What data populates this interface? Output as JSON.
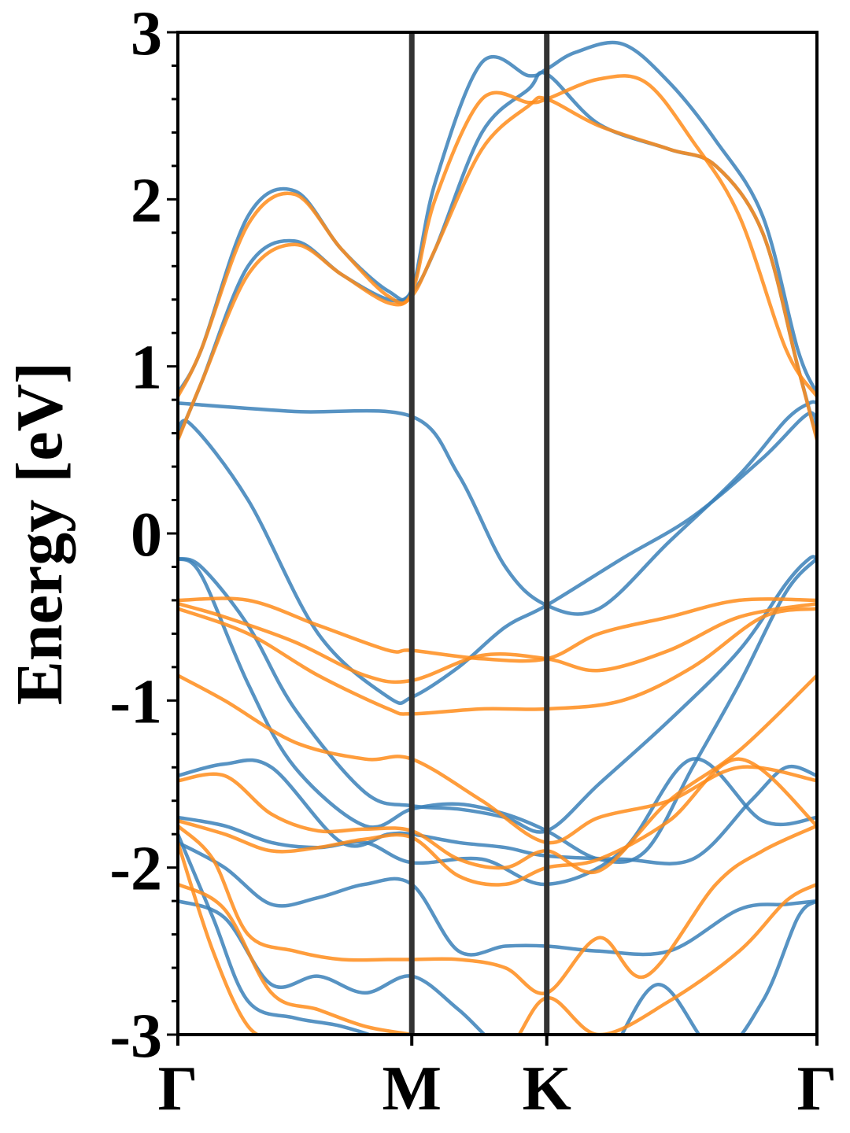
{
  "chart_data": {
    "type": "line",
    "title": "",
    "xlabel": "",
    "ylabel": "Energy [eV]",
    "ylim": [
      -3,
      3
    ],
    "yticks": [
      "-3",
      "-2",
      "-1",
      "0",
      "1",
      "2",
      "3"
    ],
    "y_minor_step": 0.2,
    "kpoints": [
      {
        "label": "Γ",
        "pos": 0.0
      },
      {
        "label": "M",
        "pos": 1.0
      },
      {
        "label": "K",
        "pos": 1.577
      },
      {
        "label": "Γ",
        "pos": 2.732
      }
    ],
    "xlim": [
      0,
      2.732
    ],
    "grid": false,
    "legend": "none",
    "colors": {
      "blue": "#3a80b8",
      "orange": "#ff8c1a",
      "vline": "#333333"
    },
    "series": [
      {
        "color": "blue",
        "x": [
          0,
          0.1,
          0.3,
          0.5,
          0.7,
          0.9,
          1.0,
          1.1,
          1.3,
          1.5,
          1.577,
          1.7,
          1.9,
          2.1,
          2.3,
          2.5,
          2.65,
          2.732
        ],
        "y": [
          0.84,
          1.1,
          1.9,
          2.05,
          1.7,
          1.45,
          1.46,
          2.1,
          2.82,
          2.74,
          2.78,
          2.88,
          2.93,
          2.7,
          2.35,
          1.9,
          1.1,
          0.84
        ]
      },
      {
        "color": "blue",
        "x": [
          0,
          0.1,
          0.3,
          0.5,
          0.7,
          0.9,
          1.0,
          1.1,
          1.3,
          1.5,
          1.577,
          1.8,
          2.1,
          2.3,
          2.5,
          2.65,
          2.732
        ],
        "y": [
          0.57,
          0.9,
          1.6,
          1.75,
          1.55,
          1.4,
          1.44,
          1.7,
          2.4,
          2.66,
          2.75,
          2.45,
          2.3,
          2.2,
          1.8,
          1.0,
          0.57
        ]
      },
      {
        "color": "blue",
        "x": [
          0,
          0.5,
          1.0,
          1.2,
          1.4,
          1.577,
          1.8,
          2.1,
          2.4,
          2.6,
          2.7,
          2.732
        ],
        "y": [
          0.78,
          0.73,
          0.7,
          0.35,
          -0.2,
          -0.43,
          -0.45,
          -0.05,
          0.35,
          0.68,
          0.78,
          0.78
        ]
      },
      {
        "color": "blue",
        "x": [
          0,
          0.05,
          0.3,
          0.6,
          0.9,
          1.0,
          1.2,
          1.4,
          1.577,
          1.9,
          2.2,
          2.5,
          2.7,
          2.732
        ],
        "y": [
          0.57,
          0.66,
          0.2,
          -0.6,
          -0.98,
          -0.98,
          -0.8,
          -0.56,
          -0.43,
          -0.15,
          0.1,
          0.45,
          0.72,
          0.57
        ]
      },
      {
        "color": "blue",
        "x": [
          0,
          0.1,
          0.3,
          0.5,
          0.8,
          1.0,
          1.2,
          1.4,
          1.577,
          1.8,
          2.1,
          2.4,
          2.6,
          2.7,
          2.732
        ],
        "y": [
          -0.15,
          -0.2,
          -0.55,
          -1.05,
          -1.55,
          -1.63,
          -1.65,
          -1.7,
          -1.78,
          -1.5,
          -1.12,
          -0.7,
          -0.3,
          -0.15,
          -0.15
        ]
      },
      {
        "color": "blue",
        "x": [
          0,
          0.1,
          0.3,
          0.5,
          0.8,
          1.0,
          1.2,
          1.4,
          1.577,
          1.8,
          2.0,
          2.2,
          2.4,
          2.6,
          2.732
        ],
        "y": [
          -0.15,
          -0.25,
          -0.9,
          -1.4,
          -1.75,
          -1.65,
          -1.62,
          -1.68,
          -1.78,
          -1.95,
          -1.9,
          -1.4,
          -0.9,
          -0.35,
          -0.15
        ]
      },
      {
        "color": "blue",
        "x": [
          0,
          0.2,
          0.4,
          0.7,
          0.9,
          1.0,
          1.2,
          1.4,
          1.577,
          1.9,
          2.2,
          2.45,
          2.6,
          2.732
        ],
        "y": [
          -1.45,
          -1.38,
          -1.4,
          -1.85,
          -1.8,
          -1.8,
          -1.85,
          -1.88,
          -1.93,
          -1.95,
          -1.95,
          -1.6,
          -1.4,
          -1.45
        ]
      },
      {
        "color": "blue",
        "x": [
          0,
          0.2,
          0.4,
          0.6,
          0.8,
          1.0,
          1.3,
          1.577,
          1.9,
          2.2,
          2.5,
          2.732
        ],
        "y": [
          -1.7,
          -1.75,
          -1.85,
          -1.88,
          -1.85,
          -1.97,
          -1.95,
          -2.1,
          -1.9,
          -1.35,
          -1.72,
          -1.7
        ]
      },
      {
        "color": "blue",
        "x": [
          0,
          0.2,
          0.4,
          0.6,
          0.8,
          1.0,
          1.2,
          1.4,
          1.577,
          1.8,
          2.1,
          2.4,
          2.6,
          2.732
        ],
        "y": [
          -1.85,
          -2.0,
          -2.22,
          -2.18,
          -2.1,
          -2.1,
          -2.5,
          -2.47,
          -2.47,
          -2.5,
          -2.5,
          -2.25,
          -2.22,
          -2.2
        ]
      },
      {
        "color": "blue",
        "x": [
          0,
          0.2,
          0.4,
          0.6,
          0.8,
          1.0,
          1.2,
          1.4,
          1.577,
          1.8,
          2.05,
          2.3,
          2.5,
          2.65,
          2.732
        ],
        "y": [
          -2.2,
          -2.3,
          -2.7,
          -2.65,
          -2.75,
          -2.65,
          -2.85,
          -3.1,
          -3.1,
          -3.2,
          -2.7,
          -3.1,
          -2.8,
          -2.3,
          -2.2
        ]
      },
      {
        "color": "blue",
        "x": [
          0,
          0.15,
          0.3,
          0.5,
          0.7,
          0.9,
          1.0
        ],
        "y": [
          -1.8,
          -2.3,
          -2.8,
          -2.9,
          -2.95,
          -3.05,
          -3.2
        ]
      },
      {
        "color": "orange",
        "x": [
          0,
          0.1,
          0.3,
          0.5,
          0.7,
          0.9,
          1.0,
          1.1,
          1.3,
          1.5,
          1.577,
          1.8,
          2.0,
          2.2,
          2.4,
          2.6,
          2.732
        ],
        "y": [
          0.82,
          1.1,
          1.85,
          2.03,
          1.7,
          1.42,
          1.44,
          2.0,
          2.6,
          2.58,
          2.6,
          2.72,
          2.7,
          2.35,
          1.9,
          1.1,
          0.82
        ]
      },
      {
        "color": "orange",
        "x": [
          0,
          0.1,
          0.3,
          0.5,
          0.7,
          0.9,
          1.0,
          1.1,
          1.3,
          1.5,
          1.577,
          1.8,
          2.1,
          2.3,
          2.5,
          2.65,
          2.732
        ],
        "y": [
          0.56,
          0.9,
          1.55,
          1.73,
          1.55,
          1.38,
          1.42,
          1.7,
          2.3,
          2.56,
          2.6,
          2.44,
          2.3,
          2.2,
          1.8,
          1.0,
          0.56
        ]
      },
      {
        "color": "orange",
        "x": [
          0,
          0.3,
          0.6,
          0.9,
          1.0,
          1.3,
          1.577,
          1.8,
          2.1,
          2.4,
          2.732
        ],
        "y": [
          -0.4,
          -0.4,
          -0.55,
          -0.7,
          -0.7,
          -0.75,
          -0.75,
          -0.6,
          -0.5,
          -0.4,
          -0.4
        ]
      },
      {
        "color": "orange",
        "x": [
          0,
          0.2,
          0.5,
          0.8,
          1.0,
          1.3,
          1.577,
          1.8,
          2.1,
          2.4,
          2.732
        ],
        "y": [
          -0.42,
          -0.5,
          -0.65,
          -0.85,
          -0.88,
          -0.73,
          -0.75,
          -0.82,
          -0.7,
          -0.5,
          -0.42
        ]
      },
      {
        "color": "orange",
        "x": [
          0,
          0.3,
          0.6,
          0.9,
          1.0,
          1.3,
          1.577,
          1.9,
          2.2,
          2.5,
          2.732
        ],
        "y": [
          -0.45,
          -0.6,
          -0.85,
          -1.05,
          -1.08,
          -1.05,
          -1.05,
          -1.0,
          -0.8,
          -0.5,
          -0.45
        ]
      },
      {
        "color": "orange",
        "x": [
          0,
          0.2,
          0.5,
          0.8,
          1.0,
          1.3,
          1.577,
          1.8,
          2.1,
          2.4,
          2.732
        ],
        "y": [
          -0.85,
          -1.0,
          -1.25,
          -1.35,
          -1.35,
          -1.6,
          -1.85,
          -1.7,
          -1.6,
          -1.4,
          -1.48
        ]
      },
      {
        "color": "orange",
        "x": [
          0,
          0.2,
          0.4,
          0.6,
          0.8,
          1.0,
          1.2,
          1.4,
          1.577,
          1.8,
          2.1,
          2.4,
          2.732
        ],
        "y": [
          -1.48,
          -1.45,
          -1.68,
          -1.78,
          -1.77,
          -1.78,
          -1.95,
          -2.0,
          -1.9,
          -2.02,
          -1.6,
          -1.3,
          -0.85
        ]
      },
      {
        "color": "orange",
        "x": [
          0,
          0.2,
          0.4,
          0.6,
          0.8,
          1.0,
          1.2,
          1.4,
          1.577,
          1.8,
          2.1,
          2.4,
          2.732
        ],
        "y": [
          -1.72,
          -1.8,
          -1.9,
          -1.88,
          -1.83,
          -1.82,
          -2.05,
          -2.1,
          -2.0,
          -1.95,
          -1.72,
          -1.35,
          -1.75
        ]
      },
      {
        "color": "orange",
        "x": [
          0,
          0.15,
          0.3,
          0.5,
          0.7,
          0.9,
          1.0,
          1.2,
          1.4,
          1.577,
          1.8,
          2.0,
          2.3,
          2.5,
          2.732
        ],
        "y": [
          -1.75,
          -1.95,
          -2.4,
          -2.5,
          -2.55,
          -2.55,
          -2.55,
          -2.55,
          -2.6,
          -2.75,
          -2.42,
          -2.65,
          -2.1,
          -1.9,
          -1.75
        ]
      },
      {
        "color": "orange",
        "x": [
          0,
          0.2,
          0.4,
          0.6,
          0.8,
          1.0,
          1.2,
          1.4,
          1.577,
          1.8,
          2.1,
          2.4,
          2.6,
          2.732
        ],
        "y": [
          -2.1,
          -2.25,
          -2.75,
          -2.85,
          -2.95,
          -3.0,
          -3.05,
          -3.1,
          -2.78,
          -3.0,
          -2.8,
          -2.5,
          -2.2,
          -2.1
        ]
      },
      {
        "color": "orange",
        "x": [
          0,
          0.15,
          0.3,
          0.45,
          0.6
        ],
        "y": [
          -1.85,
          -2.5,
          -2.95,
          -3.05,
          -3.2
        ]
      }
    ]
  }
}
